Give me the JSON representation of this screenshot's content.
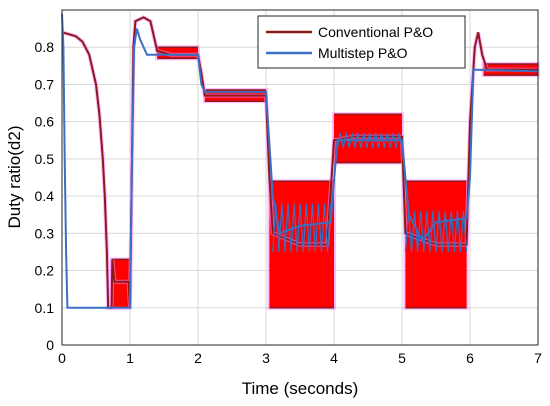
{
  "chart_data": {
    "type": "line",
    "xlabel": "Time (seconds)",
    "ylabel": "Duty ratio(d2)",
    "xlim": [
      0,
      7
    ],
    "ylim": [
      0,
      0.9
    ],
    "grid": true,
    "legend_position": "top-right",
    "x_ticks": [
      "0",
      "1",
      "2",
      "3",
      "4",
      "5",
      "6",
      "7"
    ],
    "y_ticks": [
      "0",
      "0.1",
      "0.2",
      "0.3",
      "0.4",
      "0.5",
      "0.6",
      "0.7",
      "0.8"
    ],
    "series": [
      {
        "name": "Conventional P&O",
        "color": "#8b1a1a",
        "fill_color": "#ff0000",
        "points": [
          [
            0.0,
            0.84
          ],
          [
            0.1,
            0.835
          ],
          [
            0.2,
            0.83
          ],
          [
            0.3,
            0.815
          ],
          [
            0.4,
            0.78
          ],
          [
            0.5,
            0.7
          ],
          [
            0.55,
            0.62
          ],
          [
            0.6,
            0.5
          ],
          [
            0.63,
            0.4
          ],
          [
            0.66,
            0.25
          ],
          [
            0.68,
            0.1
          ],
          [
            0.73,
            0.1
          ],
          [
            0.74,
            0.23
          ],
          [
            0.77,
            0.17
          ],
          [
            0.8,
            0.17
          ],
          [
            0.98,
            0.17
          ],
          [
            1.0,
            0.1
          ],
          [
            1.03,
            0.5
          ],
          [
            1.05,
            0.8
          ],
          [
            1.08,
            0.87
          ],
          [
            1.2,
            0.88
          ],
          [
            1.3,
            0.87
          ],
          [
            1.4,
            0.79
          ],
          [
            1.6,
            0.78
          ],
          [
            1.8,
            0.78
          ],
          [
            2.0,
            0.78
          ],
          [
            2.05,
            0.73
          ],
          [
            2.1,
            0.67
          ],
          [
            2.5,
            0.67
          ],
          [
            3.0,
            0.67
          ],
          [
            3.05,
            0.45
          ],
          [
            3.1,
            0.3
          ],
          [
            3.5,
            0.27
          ],
          [
            3.9,
            0.27
          ],
          [
            4.0,
            0.55
          ],
          [
            4.3,
            0.56
          ],
          [
            5.0,
            0.56
          ],
          [
            5.05,
            0.3
          ],
          [
            5.5,
            0.27
          ],
          [
            5.95,
            0.27
          ],
          [
            6.0,
            0.6
          ],
          [
            6.07,
            0.8
          ],
          [
            6.12,
            0.84
          ],
          [
            6.18,
            0.78
          ],
          [
            6.25,
            0.74
          ],
          [
            7.0,
            0.74
          ]
        ],
        "oscillation_bands": [
          [
            0.73,
            1.0,
            0.1,
            0.23
          ],
          [
            1.4,
            2.0,
            0.77,
            0.8
          ],
          [
            2.1,
            3.0,
            0.655,
            0.685
          ],
          [
            3.05,
            4.0,
            0.1,
            0.44
          ],
          [
            4.0,
            5.0,
            0.49,
            0.62
          ],
          [
            5.05,
            5.95,
            0.1,
            0.44
          ],
          [
            6.2,
            7.0,
            0.725,
            0.755
          ]
        ]
      },
      {
        "name": "Multistep P&O",
        "color": "#3a6fc4",
        "points": [
          [
            0.0,
            0.89
          ],
          [
            0.02,
            0.8
          ],
          [
            0.04,
            0.5
          ],
          [
            0.06,
            0.25
          ],
          [
            0.08,
            0.1
          ],
          [
            1.0,
            0.1
          ],
          [
            1.03,
            0.5
          ],
          [
            1.06,
            0.8
          ],
          [
            1.1,
            0.85
          ],
          [
            1.15,
            0.82
          ],
          [
            1.25,
            0.78
          ],
          [
            1.5,
            0.78
          ],
          [
            2.0,
            0.78
          ],
          [
            2.05,
            0.7
          ],
          [
            2.1,
            0.68
          ],
          [
            3.0,
            0.68
          ],
          [
            3.1,
            0.4
          ],
          [
            3.2,
            0.3
          ],
          [
            3.5,
            0.32
          ],
          [
            3.95,
            0.33
          ],
          [
            4.05,
            0.55
          ],
          [
            5.0,
            0.55
          ],
          [
            5.1,
            0.35
          ],
          [
            5.3,
            0.28
          ],
          [
            5.5,
            0.33
          ],
          [
            5.95,
            0.34
          ],
          [
            6.0,
            0.45
          ],
          [
            6.05,
            0.74
          ],
          [
            7.0,
            0.735
          ]
        ],
        "oscillation_bands": [
          [
            3.1,
            3.95,
            0.25,
            0.38
          ],
          [
            5.05,
            5.95,
            0.25,
            0.36
          ],
          [
            4.05,
            5.0,
            0.53,
            0.57
          ]
        ]
      }
    ]
  }
}
